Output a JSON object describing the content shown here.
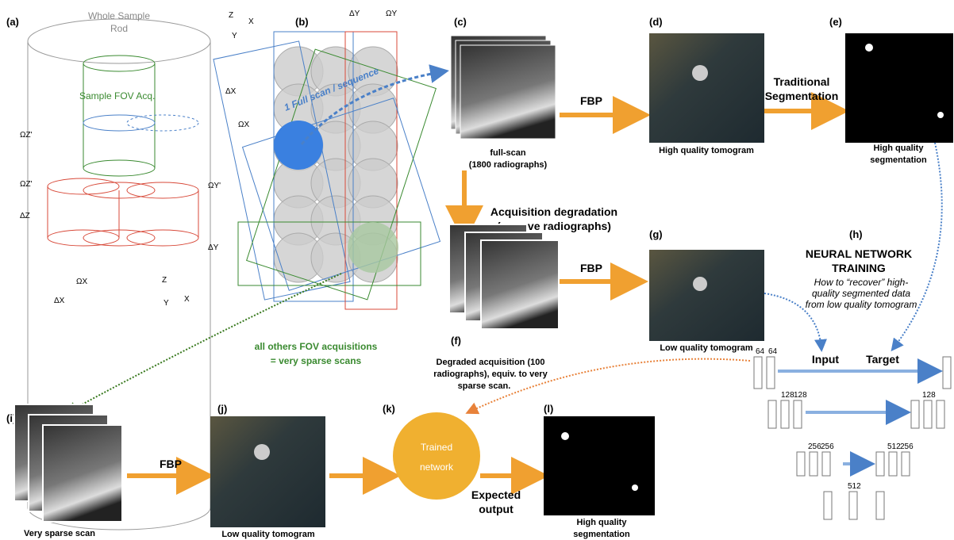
{
  "panel_labels": [
    "(a)",
    "(b)",
    "(c)",
    "(d)",
    "(e)",
    "(f)",
    "(g)",
    "(h)",
    "(i)",
    "(j)",
    "(k)",
    "(l)"
  ],
  "a": {
    "rod": [
      "Whole Sample",
      "Rod"
    ],
    "fov": "Sample FOV Acq.",
    "dims": [
      "ΩZ'",
      "ΩZ'",
      "ΔZ",
      "ΩY'",
      "ΔY",
      "ΩX",
      "ΔX"
    ],
    "axes": [
      "Z",
      "Y",
      "X"
    ]
  },
  "b": {
    "dims": [
      "ΔY",
      "ΩY",
      "ΔX",
      "ΩX"
    ],
    "scan": "1 Full scan / sequence",
    "axes": [
      "Z",
      "X",
      "Y"
    ]
  },
  "c": {
    "caption": [
      "full-scan",
      "(1800 radiographs)"
    ]
  },
  "fbp": [
    "FBP",
    "FBP",
    "FBP"
  ],
  "d": {
    "caption": "High quality tomogram"
  },
  "seg_arrow": [
    "Traditional",
    "Segmentation"
  ],
  "e": {
    "caption": [
      "High quality",
      "segmentation"
    ]
  },
  "degradation": [
    "Acquisition degradation",
    "(remove radiographs)"
  ],
  "f": {
    "caption": [
      "Degraded acquisition (100",
      "radiographs), equiv. to very",
      "sparse scan."
    ]
  },
  "g": {
    "caption": "Low quality tomogram"
  },
  "h": {
    "title": [
      "NEURAL NETWORK",
      "TRAINING"
    ],
    "desc": [
      "How to “recover” high-",
      "quality segmented data",
      "from low quality tomogram"
    ],
    "input": "Input",
    "target": "Target",
    "unet": [
      "64",
      "64",
      "128",
      "128",
      "256",
      "256",
      "512",
      "512",
      "256",
      "128"
    ]
  },
  "others": [
    "all others FOV acquisitions",
    "= very sparse scans"
  ],
  "i": {
    "caption": "Very sparse scan"
  },
  "j": {
    "caption": "Low quality tomogram"
  },
  "k": {
    "label": [
      "Trained",
      "network"
    ],
    "output": [
      "Expected",
      "output"
    ]
  },
  "l": {
    "caption": [
      "High quality",
      "segmentation"
    ]
  }
}
